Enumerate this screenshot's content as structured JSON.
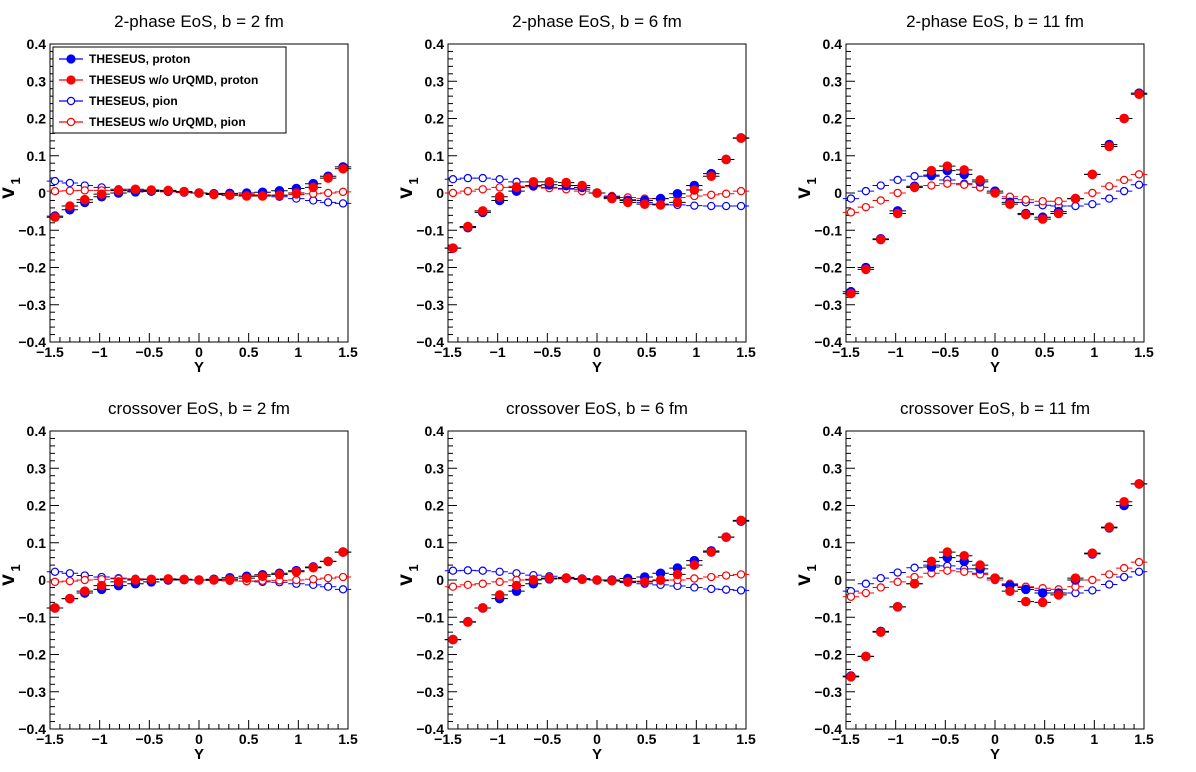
{
  "colors": {
    "series_blue": "#0000ff",
    "series_red": "#ff0000",
    "axis": "#000000"
  },
  "legend": {
    "entries": [
      {
        "label": "THESEUS, proton",
        "color": "#0000ff",
        "marker": "filled-circle"
      },
      {
        "label": "THESEUS w/o UrQMD, proton",
        "color": "#ff0000",
        "marker": "filled-circle"
      },
      {
        "label": "THESEUS, pion",
        "color": "#0000ff",
        "marker": "open-circle"
      },
      {
        "label": "THESEUS w/o UrQMD, pion",
        "color": "#ff0000",
        "marker": "open-circle"
      }
    ]
  },
  "chart_data": [
    {
      "type": "scatter",
      "title": "2-phase EoS, b = 2 fm",
      "xlabel": "Y",
      "ylabel": "v",
      "ylabel_sub": "1",
      "xlim": [
        -1.5,
        1.5
      ],
      "ylim": [
        -0.4,
        0.4
      ],
      "xticks": [
        "−1.5",
        "−1",
        "−0.5",
        "0",
        "0.5",
        "1",
        "1.5"
      ],
      "yticks": [
        "−0.4",
        "−0.3",
        "−0.2",
        "−0.1",
        "0",
        "0.1",
        "0.2",
        "0.3",
        "0.4"
      ],
      "show_legend": true,
      "x": [
        -1.45,
        -1.3,
        -1.15,
        -0.98,
        -0.81,
        -0.64,
        -0.48,
        -0.31,
        -0.15,
        0.0,
        0.15,
        0.31,
        0.48,
        0.64,
        0.81,
        0.98,
        1.15,
        1.3,
        1.45
      ],
      "series": [
        {
          "name": "THESEUS, proton",
          "values": [
            -0.062,
            -0.045,
            -0.025,
            -0.01,
            0.0,
            0.003,
            0.005,
            0.005,
            0.003,
            0.0,
            -0.002,
            -0.001,
            0.0,
            0.002,
            0.006,
            0.012,
            0.025,
            0.045,
            0.07
          ]
        },
        {
          "name": "THESEUS w/o UrQMD, proton",
          "values": [
            -0.065,
            -0.035,
            -0.018,
            -0.003,
            0.007,
            0.01,
            0.008,
            0.007,
            0.004,
            0.0,
            -0.004,
            -0.006,
            -0.008,
            -0.008,
            -0.006,
            0.0,
            0.015,
            0.04,
            0.065
          ]
        },
        {
          "name": "THESEUS, pion",
          "values": [
            0.032,
            0.027,
            0.02,
            0.015,
            0.01,
            0.007,
            0.006,
            0.005,
            0.003,
            0.0,
            -0.002,
            -0.003,
            -0.005,
            -0.006,
            -0.01,
            -0.015,
            -0.02,
            -0.025,
            -0.028
          ]
        },
        {
          "name": "THESEUS w/o UrQMD, pion",
          "values": [
            0.005,
            0.006,
            0.007,
            0.007,
            0.006,
            0.005,
            0.004,
            0.003,
            0.001,
            0.0,
            -0.001,
            -0.003,
            -0.004,
            -0.005,
            -0.006,
            -0.004,
            -0.002,
            0.0,
            0.003
          ]
        }
      ]
    },
    {
      "type": "scatter",
      "title": "2-phase EoS, b = 6 fm",
      "xlabel": "Y",
      "ylabel": "v",
      "ylabel_sub": "1",
      "xlim": [
        -1.5,
        1.5
      ],
      "ylim": [
        -0.4,
        0.4
      ],
      "xticks": [
        "−1.5",
        "−1",
        "−0.5",
        "0",
        "0.5",
        "1",
        "1.5"
      ],
      "yticks": [
        "−0.4",
        "−0.3",
        "−0.2",
        "−0.1",
        "0",
        "0.1",
        "0.2",
        "0.3",
        "0.4"
      ],
      "show_legend": false,
      "x": [
        -1.45,
        -1.3,
        -1.15,
        -0.98,
        -0.81,
        -0.64,
        -0.48,
        -0.31,
        -0.15,
        0.0,
        0.15,
        0.31,
        0.48,
        0.64,
        0.81,
        0.98,
        1.15,
        1.3,
        1.45
      ],
      "series": [
        {
          "name": "THESEUS, proton",
          "values": [
            -0.148,
            -0.093,
            -0.052,
            -0.02,
            0.005,
            0.02,
            0.022,
            0.02,
            0.015,
            0.0,
            -0.012,
            -0.02,
            -0.02,
            -0.015,
            -0.002,
            0.02,
            0.052,
            0.09,
            0.148
          ]
        },
        {
          "name": "THESEUS w/o UrQMD, proton",
          "values": [
            -0.148,
            -0.09,
            -0.048,
            -0.01,
            0.015,
            0.03,
            0.03,
            0.028,
            0.02,
            0.0,
            -0.015,
            -0.025,
            -0.03,
            -0.032,
            -0.025,
            0.008,
            0.045,
            0.09,
            0.147
          ]
        },
        {
          "name": "THESEUS, pion",
          "values": [
            0.037,
            0.04,
            0.04,
            0.037,
            0.03,
            0.02,
            0.015,
            0.012,
            0.01,
            0.0,
            -0.01,
            -0.018,
            -0.025,
            -0.03,
            -0.032,
            -0.034,
            -0.035,
            -0.035,
            -0.035
          ]
        },
        {
          "name": "THESEUS w/o UrQMD, pion",
          "values": [
            0.0,
            0.005,
            0.01,
            0.015,
            0.018,
            0.017,
            0.013,
            0.01,
            0.005,
            0.0,
            -0.008,
            -0.012,
            -0.015,
            -0.015,
            -0.012,
            -0.008,
            -0.005,
            -0.002,
            0.005
          ]
        }
      ]
    },
    {
      "type": "scatter",
      "title": "2-phase EoS, b = 11 fm",
      "xlabel": "Y",
      "ylabel": "v",
      "ylabel_sub": "1",
      "xlim": [
        -1.5,
        1.5
      ],
      "ylim": [
        -0.4,
        0.4
      ],
      "xticks": [
        "−1.5",
        "−1",
        "−0.5",
        "0",
        "0.5",
        "1",
        "1.5"
      ],
      "yticks": [
        "−0.4",
        "−0.3",
        "−0.2",
        "−0.1",
        "0",
        "0.1",
        "0.2",
        "0.3",
        "0.4"
      ],
      "show_legend": false,
      "x": [
        -1.45,
        -1.3,
        -1.15,
        -0.98,
        -0.81,
        -0.64,
        -0.48,
        -0.31,
        -0.15,
        0.0,
        0.15,
        0.31,
        0.48,
        0.64,
        0.81,
        0.98,
        1.15,
        1.3,
        1.45
      ],
      "series": [
        {
          "name": "THESEUS, proton",
          "values": [
            -0.265,
            -0.2,
            -0.123,
            -0.048,
            0.018,
            0.048,
            0.06,
            0.05,
            0.03,
            0.005,
            -0.025,
            -0.055,
            -0.065,
            -0.05,
            -0.015,
            0.05,
            0.13,
            0.2,
            0.268
          ]
        },
        {
          "name": "THESEUS w/o UrQMD, proton",
          "values": [
            -0.27,
            -0.205,
            -0.125,
            -0.055,
            0.015,
            0.06,
            0.072,
            0.062,
            0.035,
            0.0,
            -0.03,
            -0.058,
            -0.07,
            -0.055,
            -0.015,
            0.05,
            0.125,
            0.2,
            0.265
          ]
        },
        {
          "name": "THESEUS, pion",
          "values": [
            -0.015,
            0.005,
            0.02,
            0.035,
            0.045,
            0.045,
            0.035,
            0.025,
            0.015,
            0.0,
            -0.015,
            -0.025,
            -0.033,
            -0.035,
            -0.035,
            -0.03,
            -0.015,
            0.005,
            0.022
          ]
        },
        {
          "name": "THESEUS w/o UrQMD, pion",
          "values": [
            -0.052,
            -0.038,
            -0.02,
            0.0,
            0.015,
            0.02,
            0.025,
            0.022,
            0.015,
            0.0,
            -0.01,
            -0.018,
            -0.022,
            -0.022,
            -0.015,
            0.0,
            0.018,
            0.035,
            0.05
          ]
        }
      ]
    },
    {
      "type": "scatter",
      "title": "crossover EoS, b = 2 fm",
      "xlabel": "Y",
      "ylabel": "v",
      "ylabel_sub": "1",
      "xlim": [
        -1.5,
        1.5
      ],
      "ylim": [
        -0.4,
        0.4
      ],
      "xticks": [
        "−1.5",
        "−1",
        "−0.5",
        "0",
        "0.5",
        "1",
        "1.5"
      ],
      "yticks": [
        "−0.4",
        "−0.3",
        "−0.2",
        "−0.1",
        "0",
        "0.1",
        "0.2",
        "0.3",
        "0.4"
      ],
      "show_legend": false,
      "x": [
        -1.45,
        -1.3,
        -1.15,
        -0.98,
        -0.81,
        -0.64,
        -0.48,
        -0.31,
        -0.15,
        0.0,
        0.15,
        0.31,
        0.48,
        0.64,
        0.81,
        0.98,
        1.15,
        1.3,
        1.45
      ],
      "series": [
        {
          "name": "THESEUS, proton",
          "values": [
            -0.075,
            -0.05,
            -0.035,
            -0.025,
            -0.015,
            -0.01,
            -0.005,
            0.0,
            0.001,
            0.0,
            0.002,
            0.006,
            0.01,
            0.014,
            0.018,
            0.025,
            0.035,
            0.05,
            0.075
          ]
        },
        {
          "name": "THESEUS w/o UrQMD, proton",
          "values": [
            -0.075,
            -0.05,
            -0.03,
            -0.015,
            -0.005,
            0.0,
            0.002,
            0.003,
            0.002,
            0.0,
            0.0,
            0.002,
            0.005,
            0.01,
            0.015,
            0.022,
            0.033,
            0.05,
            0.075
          ]
        },
        {
          "name": "THESEUS, pion",
          "values": [
            0.022,
            0.018,
            0.012,
            0.008,
            0.005,
            0.003,
            0.002,
            0.001,
            0.0,
            0.0,
            -0.001,
            -0.002,
            -0.003,
            -0.005,
            -0.006,
            -0.01,
            -0.013,
            -0.018,
            -0.025
          ]
        },
        {
          "name": "THESEUS w/o UrQMD, pion",
          "values": [
            -0.005,
            -0.003,
            0.0,
            0.002,
            0.003,
            0.003,
            0.002,
            0.002,
            0.001,
            0.0,
            -0.001,
            -0.002,
            -0.003,
            -0.002,
            -0.001,
            0.0,
            0.002,
            0.005,
            0.008
          ]
        }
      ]
    },
    {
      "type": "scatter",
      "title": "crossover EoS, b = 6 fm",
      "xlabel": "Y",
      "ylabel": "v",
      "ylabel_sub": "1",
      "xlim": [
        -1.5,
        1.5
      ],
      "ylim": [
        -0.4,
        0.4
      ],
      "xticks": [
        "−1.5",
        "−1",
        "−0.5",
        "0",
        "0.5",
        "1",
        "1.5"
      ],
      "yticks": [
        "−0.4",
        "−0.3",
        "−0.2",
        "−0.1",
        "0",
        "0.1",
        "0.2",
        "0.3",
        "0.4"
      ],
      "show_legend": false,
      "x": [
        -1.45,
        -1.3,
        -1.15,
        -0.98,
        -0.81,
        -0.64,
        -0.48,
        -0.31,
        -0.15,
        0.0,
        0.15,
        0.31,
        0.48,
        0.64,
        0.81,
        0.98,
        1.15,
        1.3,
        1.45
      ],
      "series": [
        {
          "name": "THESEUS, proton",
          "values": [
            -0.16,
            -0.112,
            -0.075,
            -0.05,
            -0.03,
            -0.01,
            0.003,
            0.005,
            0.002,
            0.0,
            0.0,
            0.004,
            0.008,
            0.018,
            0.032,
            0.052,
            0.078,
            0.115,
            0.158
          ]
        },
        {
          "name": "THESEUS w/o UrQMD, proton",
          "values": [
            -0.16,
            -0.113,
            -0.075,
            -0.04,
            -0.015,
            0.0,
            0.005,
            0.005,
            0.002,
            0.0,
            -0.002,
            -0.005,
            -0.005,
            0.0,
            0.015,
            0.04,
            0.075,
            0.115,
            0.16
          ]
        },
        {
          "name": "THESEUS, pion",
          "values": [
            0.025,
            0.026,
            0.025,
            0.022,
            0.018,
            0.013,
            0.01,
            0.007,
            0.004,
            0.0,
            -0.003,
            -0.007,
            -0.01,
            -0.013,
            -0.016,
            -0.02,
            -0.024,
            -0.026,
            -0.028
          ]
        },
        {
          "name": "THESEUS w/o UrQMD, pion",
          "values": [
            -0.018,
            -0.013,
            -0.01,
            -0.005,
            0.0,
            0.002,
            0.003,
            0.003,
            0.002,
            0.0,
            -0.002,
            -0.003,
            -0.003,
            -0.002,
            0.0,
            0.004,
            0.008,
            0.012,
            0.015
          ]
        }
      ]
    },
    {
      "type": "scatter",
      "title": "crossover EoS, b = 11 fm",
      "xlabel": "Y",
      "ylabel": "v",
      "ylabel_sub": "1",
      "xlim": [
        -1.5,
        1.5
      ],
      "ylim": [
        -0.4,
        0.4
      ],
      "xticks": [
        "−1.5",
        "−1",
        "−0.5",
        "0",
        "0.5",
        "1",
        "1.5"
      ],
      "yticks": [
        "−0.4",
        "−0.3",
        "−0.2",
        "−0.1",
        "0",
        "0.1",
        "0.2",
        "0.3",
        "0.4"
      ],
      "show_legend": false,
      "x": [
        -1.45,
        -1.3,
        -1.15,
        -0.98,
        -0.81,
        -0.64,
        -0.48,
        -0.31,
        -0.15,
        0.0,
        0.15,
        0.31,
        0.48,
        0.64,
        0.81,
        0.98,
        1.15,
        1.3,
        1.45
      ],
      "series": [
        {
          "name": "THESEUS, proton",
          "values": [
            -0.258,
            -0.205,
            -0.138,
            -0.072,
            -0.01,
            0.035,
            0.06,
            0.05,
            0.03,
            0.005,
            -0.015,
            -0.025,
            -0.035,
            -0.035,
            0.0,
            0.07,
            0.14,
            0.2,
            0.258
          ]
        },
        {
          "name": "THESEUS w/o UrQMD, proton",
          "values": [
            -0.26,
            -0.205,
            -0.14,
            -0.072,
            -0.01,
            0.05,
            0.075,
            0.065,
            0.04,
            0.005,
            -0.03,
            -0.058,
            -0.06,
            -0.04,
            0.005,
            0.072,
            0.142,
            0.21,
            0.258
          ]
        },
        {
          "name": "THESEUS, pion",
          "values": [
            -0.03,
            -0.01,
            0.005,
            0.02,
            0.033,
            0.04,
            0.038,
            0.03,
            0.018,
            0.0,
            -0.012,
            -0.02,
            -0.028,
            -0.035,
            -0.035,
            -0.028,
            -0.012,
            0.008,
            0.022
          ]
        },
        {
          "name": "THESEUS w/o UrQMD, pion",
          "values": [
            -0.045,
            -0.035,
            -0.02,
            -0.005,
            0.008,
            0.018,
            0.025,
            0.022,
            0.015,
            0.0,
            -0.01,
            -0.018,
            -0.022,
            -0.025,
            -0.018,
            0.0,
            0.015,
            0.032,
            0.048
          ]
        }
      ]
    }
  ]
}
